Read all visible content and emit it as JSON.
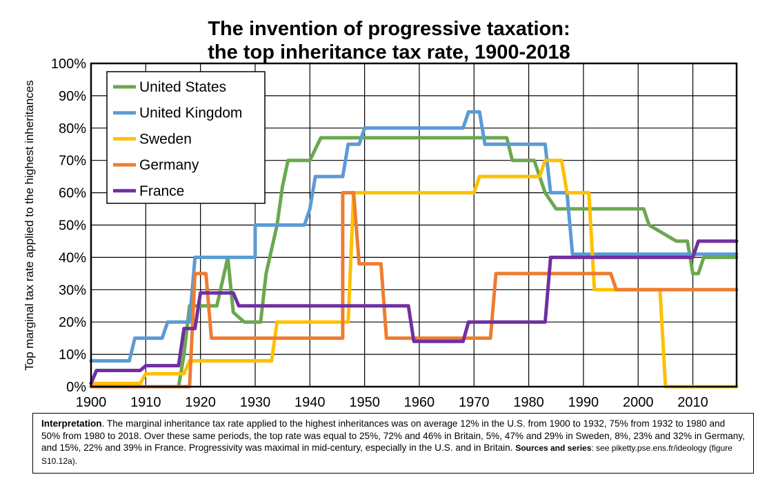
{
  "title_line1": "The invention of progressive taxation:",
  "title_line2": "the top inheritance tax rate, 1900-2018",
  "chart_data": {
    "type": "line",
    "title": "The invention of progressive taxation: the top inheritance tax rate, 1900-2018",
    "xlabel": "",
    "ylabel": "Top marginal tax rate applied to the highest inheritances",
    "xlim": [
      1900,
      2018
    ],
    "ylim": [
      0,
      100
    ],
    "x_ticks": [
      "1900",
      "1910",
      "1920",
      "1930",
      "1940",
      "1950",
      "1960",
      "1970",
      "1980",
      "1990",
      "2000",
      "2010"
    ],
    "y_ticks": [
      "0%",
      "10%",
      "20%",
      "30%",
      "40%",
      "50%",
      "60%",
      "70%",
      "80%",
      "90%",
      "100%"
    ],
    "grid": true,
    "legend_position": "top-left",
    "series": [
      {
        "name": "United States",
        "color": "#6aa84f",
        "points": [
          [
            1900,
            0
          ],
          [
            1916,
            0
          ],
          [
            1917,
            10
          ],
          [
            1918,
            25
          ],
          [
            1919,
            25
          ],
          [
            1923,
            25
          ],
          [
            1925,
            40
          ],
          [
            1926,
            23
          ],
          [
            1928,
            20
          ],
          [
            1931,
            20
          ],
          [
            1932,
            35
          ],
          [
            1934,
            50
          ],
          [
            1935,
            62
          ],
          [
            1936,
            70
          ],
          [
            1940,
            70
          ],
          [
            1942,
            77
          ],
          [
            1976,
            77
          ],
          [
            1977,
            70
          ],
          [
            1981,
            70
          ],
          [
            1982,
            65
          ],
          [
            1983,
            60
          ],
          [
            1985,
            55
          ],
          [
            2001,
            55
          ],
          [
            2002,
            50
          ],
          [
            2003,
            49
          ],
          [
            2004,
            48
          ],
          [
            2005,
            47
          ],
          [
            2006,
            46
          ],
          [
            2007,
            45
          ],
          [
            2009,
            45
          ],
          [
            2010,
            35
          ],
          [
            2011,
            35
          ],
          [
            2012,
            40
          ],
          [
            2018,
            40
          ]
        ]
      },
      {
        "name": "United Kingdom",
        "color": "#5b9bd5",
        "points": [
          [
            1900,
            8
          ],
          [
            1907,
            8
          ],
          [
            1908,
            15
          ],
          [
            1913,
            15
          ],
          [
            1914,
            20
          ],
          [
            1918,
            20
          ],
          [
            1919,
            40
          ],
          [
            1930,
            40
          ],
          [
            1930,
            50
          ],
          [
            1939,
            50
          ],
          [
            1940,
            55
          ],
          [
            1941,
            65
          ],
          [
            1946,
            65
          ],
          [
            1947,
            75
          ],
          [
            1949,
            75
          ],
          [
            1950,
            80
          ],
          [
            1968,
            80
          ],
          [
            1969,
            85
          ],
          [
            1971,
            85
          ],
          [
            1972,
            75
          ],
          [
            1983,
            75
          ],
          [
            1984,
            60
          ],
          [
            1987,
            60
          ],
          [
            1988,
            41
          ],
          [
            2018,
            41
          ]
        ]
      },
      {
        "name": "Sweden",
        "color": "#ffc000",
        "points": [
          [
            1900,
            1
          ],
          [
            1909,
            1
          ],
          [
            1910,
            4
          ],
          [
            1917,
            4
          ],
          [
            1918,
            8
          ],
          [
            1933,
            8
          ],
          [
            1934,
            20
          ],
          [
            1946,
            20
          ],
          [
            1947,
            20
          ],
          [
            1948,
            60
          ],
          [
            1970,
            60
          ],
          [
            1971,
            65
          ],
          [
            1982,
            65
          ],
          [
            1983,
            70
          ],
          [
            1986,
            70
          ],
          [
            1987,
            60
          ],
          [
            1991,
            60
          ],
          [
            1992,
            30
          ],
          [
            2004,
            30
          ],
          [
            2005,
            0
          ],
          [
            2018,
            0
          ]
        ]
      },
      {
        "name": "Germany",
        "color": "#ed7d31",
        "points": [
          [
            1900,
            0
          ],
          [
            1918,
            0
          ],
          [
            1919,
            35
          ],
          [
            1921,
            35
          ],
          [
            1922,
            15
          ],
          [
            1946,
            15
          ],
          [
            1946,
            60
          ],
          [
            1948,
            60
          ],
          [
            1949,
            38
          ],
          [
            1953,
            38
          ],
          [
            1954,
            15
          ],
          [
            1973,
            15
          ],
          [
            1974,
            35
          ],
          [
            1995,
            35
          ],
          [
            1996,
            30
          ],
          [
            2018,
            30
          ]
        ]
      },
      {
        "name": "France",
        "color": "#7030a0",
        "points": [
          [
            1900,
            1
          ],
          [
            1901,
            5
          ],
          [
            1909,
            5
          ],
          [
            1910,
            6.5
          ],
          [
            1916,
            6.5
          ],
          [
            1917,
            18
          ],
          [
            1919,
            18
          ],
          [
            1920,
            29
          ],
          [
            1926,
            29
          ],
          [
            1927,
            25
          ],
          [
            1958,
            25
          ],
          [
            1959,
            14
          ],
          [
            1968,
            14
          ],
          [
            1969,
            20
          ],
          [
            1983,
            20
          ],
          [
            1984,
            40
          ],
          [
            2010,
            40
          ],
          [
            2011,
            45
          ],
          [
            2018,
            45
          ]
        ]
      }
    ]
  },
  "note": {
    "label": "Interpretation",
    "text": ". The marginal inheritance tax rate applied to the highest inheritances was on average 12% in the U.S. from 1900 to 1932, 75% from 1932 to 1980 and 50% from 1980 to 2018. Over these same periods, the top rate was equal to 25%, 72% and 46% in Britain, 5%, 47% and 29% in Sweden, 8%, 23% and 32% in Germany, and 15%, 22% and 39% in France. Progressivity was maximal in mid-century, especially in the U.S. and in Britain.",
    "sources_label": "Sources and series",
    "sources_text": ": see piketty.pse.ens.fr/ideology (figure S10.12a)."
  }
}
